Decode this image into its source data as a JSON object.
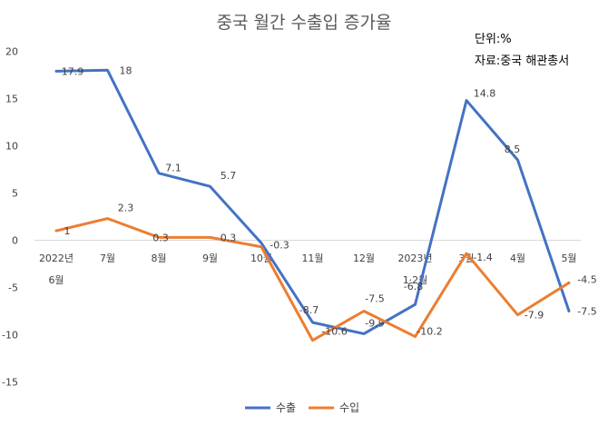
{
  "chart_data": {
    "type": "line",
    "title": "중국 월간 수출입 증가율",
    "unit_note": "단위:%",
    "source_note": "자료:중국 해관총서",
    "categories": [
      [
        "2022년",
        "6월"
      ],
      [
        "7월"
      ],
      [
        "8월"
      ],
      [
        "9월"
      ],
      [
        "10월"
      ],
      [
        "11월"
      ],
      [
        "12월"
      ],
      [
        "2023년",
        "1·2월"
      ],
      [
        "3월"
      ],
      [
        "4월"
      ],
      [
        "5월"
      ]
    ],
    "ylim": [
      -15,
      20
    ],
    "yticks": [
      -15,
      -10,
      -5,
      0,
      5,
      10,
      15,
      20
    ],
    "grid": false,
    "legend": "bottom",
    "series": [
      {
        "name": "수출",
        "color": "#4472C4",
        "values": [
          17.9,
          18,
          7.1,
          5.7,
          -0.3,
          -8.7,
          -9.9,
          -6.8,
          14.8,
          8.5,
          -7.5
        ],
        "labels": [
          "17.9",
          "18",
          "7.1",
          "5.7",
          "-0.3",
          "-8.7",
          "-9.9",
          "-6.8",
          "14.8",
          "8.5",
          "-7.5"
        ]
      },
      {
        "name": "수입",
        "color": "#ED7D31",
        "values": [
          1,
          2.3,
          0.3,
          0.3,
          -0.7,
          -10.6,
          -7.5,
          -10.2,
          -1.4,
          -7.9,
          -4.5
        ],
        "labels": [
          "1",
          "2.3",
          "0.3",
          "0.3",
          "",
          "-10.6",
          "-7.5",
          "-10.2",
          "-1.4",
          "-7.9",
          "-4.5"
        ]
      }
    ]
  }
}
